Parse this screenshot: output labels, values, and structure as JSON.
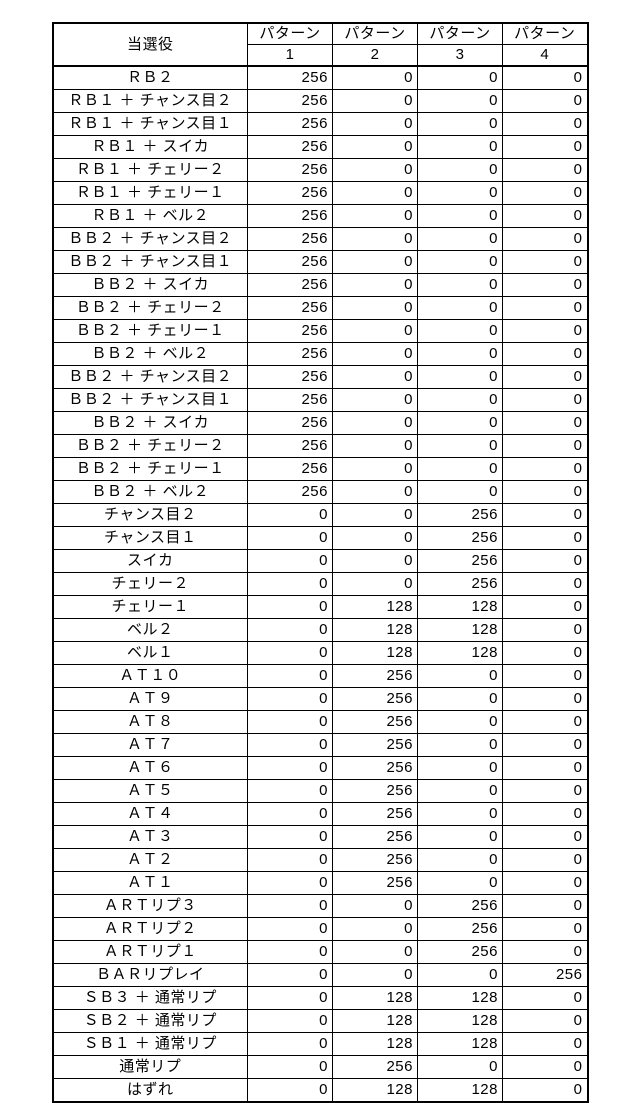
{
  "columns": {
    "widths": [
      195,
      85,
      85,
      85,
      85
    ],
    "header_label": "当選役",
    "pattern_prefix": "パターン",
    "pattern_nums": [
      "1",
      "2",
      "3",
      "4"
    ]
  },
  "colors": {
    "border": "#000000",
    "background": "#ffffff",
    "text": "#000000"
  },
  "font": {
    "size_pt": 11,
    "family": "MS Gothic"
  },
  "rows": [
    {
      "label": "ＲＢ２",
      "p": [
        256,
        0,
        0,
        0
      ]
    },
    {
      "label": "ＲＢ１ ＋ チャンス目２",
      "p": [
        256,
        0,
        0,
        0
      ]
    },
    {
      "label": "ＲＢ１ ＋ チャンス目１",
      "p": [
        256,
        0,
        0,
        0
      ]
    },
    {
      "label": "ＲＢ１ ＋ スイカ",
      "p": [
        256,
        0,
        0,
        0
      ]
    },
    {
      "label": "ＲＢ１ ＋ チェリー２",
      "p": [
        256,
        0,
        0,
        0
      ]
    },
    {
      "label": "ＲＢ１ ＋ チェリー１",
      "p": [
        256,
        0,
        0,
        0
      ]
    },
    {
      "label": "ＲＢ１ ＋ ベル２",
      "p": [
        256,
        0,
        0,
        0
      ]
    },
    {
      "label": "ＢＢ２ ＋ チャンス目２",
      "p": [
        256,
        0,
        0,
        0
      ]
    },
    {
      "label": "ＢＢ２ ＋ チャンス目１",
      "p": [
        256,
        0,
        0,
        0
      ]
    },
    {
      "label": "ＢＢ２ ＋ スイカ",
      "p": [
        256,
        0,
        0,
        0
      ]
    },
    {
      "label": "ＢＢ２ ＋ チェリー２",
      "p": [
        256,
        0,
        0,
        0
      ]
    },
    {
      "label": "ＢＢ２ ＋ チェリー１",
      "p": [
        256,
        0,
        0,
        0
      ]
    },
    {
      "label": "ＢＢ２ ＋ ベル２",
      "p": [
        256,
        0,
        0,
        0
      ]
    },
    {
      "label": "ＢＢ２ ＋ チャンス目２",
      "p": [
        256,
        0,
        0,
        0
      ]
    },
    {
      "label": "ＢＢ２ ＋ チャンス目１",
      "p": [
        256,
        0,
        0,
        0
      ]
    },
    {
      "label": "ＢＢ２ ＋ スイカ",
      "p": [
        256,
        0,
        0,
        0
      ]
    },
    {
      "label": "ＢＢ２ ＋ チェリー２",
      "p": [
        256,
        0,
        0,
        0
      ]
    },
    {
      "label": "ＢＢ２ ＋ チェリー１",
      "p": [
        256,
        0,
        0,
        0
      ]
    },
    {
      "label": "ＢＢ２ ＋ ベル２",
      "p": [
        256,
        0,
        0,
        0
      ]
    },
    {
      "label": "チャンス目２",
      "p": [
        0,
        0,
        256,
        0
      ]
    },
    {
      "label": "チャンス目１",
      "p": [
        0,
        0,
        256,
        0
      ]
    },
    {
      "label": "スイカ",
      "p": [
        0,
        0,
        256,
        0
      ]
    },
    {
      "label": "チェリー２",
      "p": [
        0,
        0,
        256,
        0
      ]
    },
    {
      "label": "チェリー１",
      "p": [
        0,
        128,
        128,
        0
      ]
    },
    {
      "label": "ベル２",
      "p": [
        0,
        128,
        128,
        0
      ]
    },
    {
      "label": "ベル１",
      "p": [
        0,
        128,
        128,
        0
      ]
    },
    {
      "label": "ＡＴ１０",
      "p": [
        0,
        256,
        0,
        0
      ]
    },
    {
      "label": "ＡＴ９",
      "p": [
        0,
        256,
        0,
        0
      ]
    },
    {
      "label": "ＡＴ８",
      "p": [
        0,
        256,
        0,
        0
      ]
    },
    {
      "label": "ＡＴ７",
      "p": [
        0,
        256,
        0,
        0
      ]
    },
    {
      "label": "ＡＴ６",
      "p": [
        0,
        256,
        0,
        0
      ]
    },
    {
      "label": "ＡＴ５",
      "p": [
        0,
        256,
        0,
        0
      ]
    },
    {
      "label": "ＡＴ４",
      "p": [
        0,
        256,
        0,
        0
      ]
    },
    {
      "label": "ＡＴ３",
      "p": [
        0,
        256,
        0,
        0
      ]
    },
    {
      "label": "ＡＴ２",
      "p": [
        0,
        256,
        0,
        0
      ]
    },
    {
      "label": "ＡＴ１",
      "p": [
        0,
        256,
        0,
        0
      ]
    },
    {
      "label": "ＡＲＴリプ３",
      "p": [
        0,
        0,
        256,
        0
      ]
    },
    {
      "label": "ＡＲＴリプ２",
      "p": [
        0,
        0,
        256,
        0
      ]
    },
    {
      "label": "ＡＲＴリプ１",
      "p": [
        0,
        0,
        256,
        0
      ]
    },
    {
      "label": "ＢＡＲリプレイ",
      "p": [
        0,
        0,
        0,
        256
      ]
    },
    {
      "label": "ＳＢ３ ＋ 通常リプ",
      "p": [
        0,
        128,
        128,
        0
      ]
    },
    {
      "label": "ＳＢ２ ＋ 通常リプ",
      "p": [
        0,
        128,
        128,
        0
      ]
    },
    {
      "label": "ＳＢ１ ＋ 通常リプ",
      "p": [
        0,
        128,
        128,
        0
      ]
    },
    {
      "label": "通常リプ",
      "p": [
        0,
        256,
        0,
        0
      ]
    },
    {
      "label": "はずれ",
      "p": [
        0,
        128,
        128,
        0
      ]
    }
  ]
}
